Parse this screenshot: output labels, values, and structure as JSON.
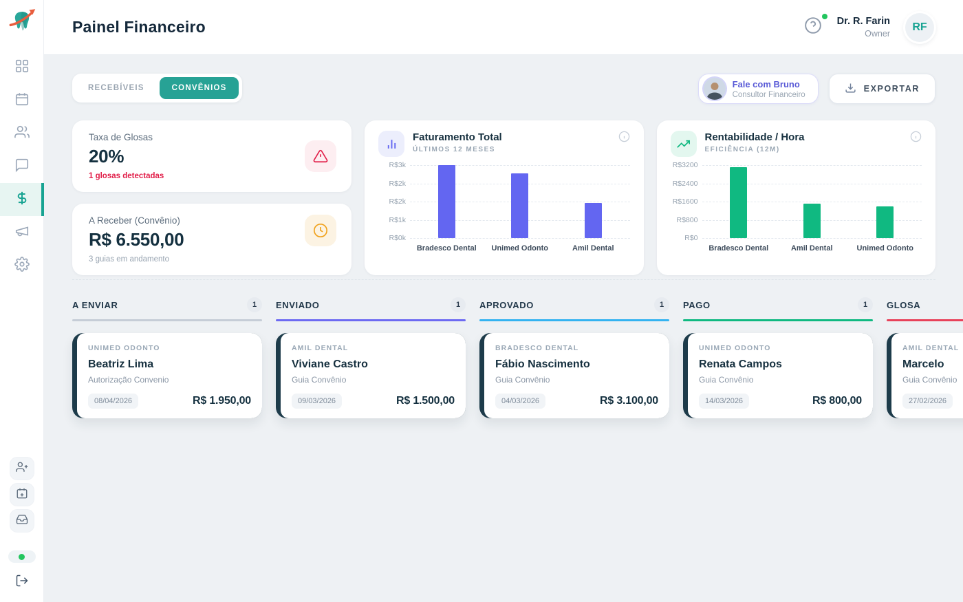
{
  "header": {
    "title": "Painel Financeiro",
    "user_name": "Dr. R. Farin",
    "user_role": "Owner",
    "avatar_initials": "RF"
  },
  "sidebar": {
    "items": [
      "dashboard",
      "calendar",
      "patients",
      "chat",
      "finance",
      "marketing",
      "settings"
    ],
    "active_item": "finance",
    "footer_actions": [
      "add-user",
      "add-appointment",
      "inbox"
    ],
    "status_color": "#22c55e"
  },
  "toolbar": {
    "tabs": [
      {
        "label": "RECEBÍVEIS",
        "active": false
      },
      {
        "label": "CONVÊNIOS",
        "active": true
      }
    ],
    "consultant": {
      "name": "Fale com Bruno",
      "role": "Consultor Financeiro"
    },
    "export_label": "EXPORTAR"
  },
  "stats": {
    "glosas": {
      "label": "Taxa de Glosas",
      "value": "20%",
      "note": "1 glosas detectadas"
    },
    "receber": {
      "label": "A Receber (Convênio)",
      "value": "R$ 6.550,00",
      "note": "3 guias em andamento"
    }
  },
  "chart_data": [
    {
      "type": "bar",
      "title": "Faturamento Total",
      "subtitle": "ÚLTIMOS 12 MESES",
      "categories": [
        "Bradesco Dental",
        "Unimed Odonto",
        "Amil Dental"
      ],
      "values": [
        3100,
        2750,
        1500
      ],
      "ylim": [
        0,
        3100
      ],
      "yticks_top_to_bottom": [
        "R$3k",
        "R$2k",
        "R$2k",
        "R$1k",
        "R$0k"
      ],
      "bar_color": "#6366f1",
      "grid": true,
      "legend": "none"
    },
    {
      "type": "bar",
      "title": "Rentabilidade / Hora",
      "subtitle": "EFICIÊNCIA (12M)",
      "categories": [
        "Bradesco Dental",
        "Amil Dental",
        "Unimed Odonto"
      ],
      "values": [
        3100,
        1500,
        1375
      ],
      "ylim": [
        0,
        3200
      ],
      "yticks_top_to_bottom": [
        "R$3200",
        "R$2400",
        "R$1600",
        "R$800",
        "R$0"
      ],
      "bar_color": "#10b981",
      "grid": true,
      "legend": "none"
    }
  ],
  "kanban": {
    "columns": [
      {
        "title": "A ENVIAR",
        "count": "1",
        "accent": "#c6cdd7",
        "card": {
          "brand": "UNIMED ODONTO",
          "name": "Beatriz Lima",
          "type": "Autorização Convenio",
          "date": "08/04/2026",
          "value": "R$ 1.950,00"
        }
      },
      {
        "title": "ENVIADO",
        "count": "1",
        "accent": "#6d6af2",
        "card": {
          "brand": "AMIL DENTAL",
          "name": "Viviane Castro",
          "type": "Guia Convênio",
          "date": "09/03/2026",
          "value": "R$ 1.500,00"
        }
      },
      {
        "title": "APROVADO",
        "count": "1",
        "accent": "#34b3f1",
        "card": {
          "brand": "BRADESCO DENTAL",
          "name": "Fábio Nascimento",
          "type": "Guia Convênio",
          "date": "04/03/2026",
          "value": "R$ 3.100,00"
        }
      },
      {
        "title": "PAGO",
        "count": "1",
        "accent": "#10b981",
        "card": {
          "brand": "UNIMED ODONTO",
          "name": "Renata Campos",
          "type": "Guia Convênio",
          "date": "14/03/2026",
          "value": "R$ 800,00"
        }
      },
      {
        "title": "GLOSA",
        "count": "",
        "accent": "#e8425a",
        "card": {
          "brand": "AMIL DENTAL",
          "name": "Marcelo",
          "type": "Guia Convênio",
          "date": "27/02/2026",
          "value": ""
        }
      }
    ]
  }
}
